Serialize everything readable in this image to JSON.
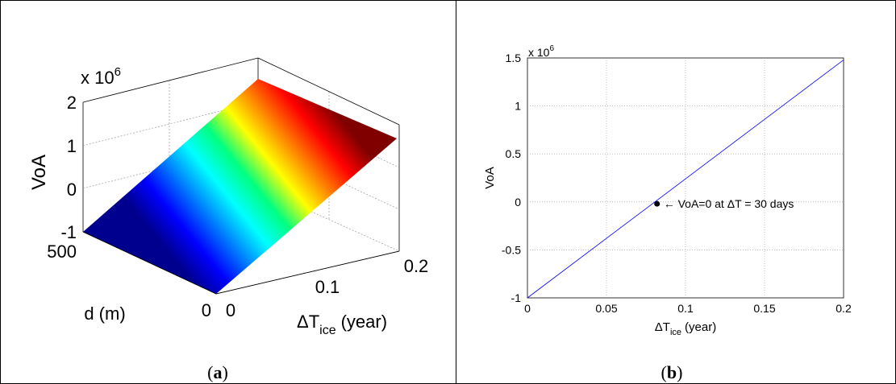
{
  "chart_data": [
    {
      "panel_label": "a",
      "type": "surface",
      "xlabel": "d (m)",
      "ylabel_main": "ΔT",
      "ylabel_sub": "ice",
      "ylabel_unit": "(year)",
      "zlabel": "VoA",
      "zscale_text": "x 10",
      "zscale_exp": "6",
      "x_range": [
        0,
        500
      ],
      "y_range": [
        0,
        0.2
      ],
      "zlim": [
        -1,
        2
      ],
      "x_ticks": [
        "0",
        "500"
      ],
      "y_ticks": [
        "0",
        "0.1",
        "0.2"
      ],
      "z_ticks": [
        "-1",
        "0",
        "1",
        "2"
      ],
      "surface_z": [
        -1,
        1.5
      ],
      "colormap": "jet",
      "grid": true
    },
    {
      "panel_label": "b",
      "type": "line",
      "xlabel_main": "ΔT",
      "xlabel_sub": "ice",
      "xlabel_unit": "(year)",
      "ylabel": "VoA",
      "yscale_text": "x 10",
      "yscale_exp": "6",
      "xlim": [
        0,
        0.2
      ],
      "ylim": [
        -1,
        1.5
      ],
      "x_ticks": [
        "0",
        "0.05",
        "0.1",
        "0.15",
        "0.2"
      ],
      "y_ticks": [
        "-1",
        "-0.5",
        "0",
        "0.5",
        "1",
        "1.5"
      ],
      "series": [
        {
          "x": [
            0,
            0.2
          ],
          "y": [
            -1.0,
            1.48
          ],
          "color": "#0000ff"
        }
      ],
      "marker": {
        "x": 0.082,
        "y": -0.02,
        "label": "← VoA=0 at ΔT = 30 days"
      },
      "grid": true
    }
  ]
}
